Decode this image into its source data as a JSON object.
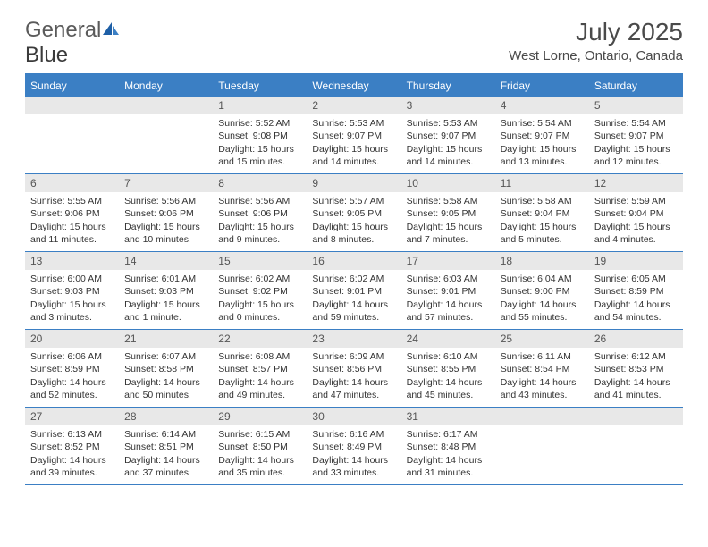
{
  "logo": {
    "text1": "General",
    "text2": "Blue"
  },
  "title": "July 2025",
  "location": "West Lorne, Ontario, Canada",
  "colors": {
    "header_bg": "#3b7fc4",
    "header_text": "#ffffff",
    "daynum_bg": "#e8e8e8",
    "border": "#3b7fc4",
    "body_text": "#333333"
  },
  "weekdays": [
    "Sunday",
    "Monday",
    "Tuesday",
    "Wednesday",
    "Thursday",
    "Friday",
    "Saturday"
  ],
  "weeks": [
    [
      {
        "n": "",
        "lines": []
      },
      {
        "n": "",
        "lines": []
      },
      {
        "n": "1",
        "lines": [
          "Sunrise: 5:52 AM",
          "Sunset: 9:08 PM",
          "Daylight: 15 hours",
          "and 15 minutes."
        ]
      },
      {
        "n": "2",
        "lines": [
          "Sunrise: 5:53 AM",
          "Sunset: 9:07 PM",
          "Daylight: 15 hours",
          "and 14 minutes."
        ]
      },
      {
        "n": "3",
        "lines": [
          "Sunrise: 5:53 AM",
          "Sunset: 9:07 PM",
          "Daylight: 15 hours",
          "and 14 minutes."
        ]
      },
      {
        "n": "4",
        "lines": [
          "Sunrise: 5:54 AM",
          "Sunset: 9:07 PM",
          "Daylight: 15 hours",
          "and 13 minutes."
        ]
      },
      {
        "n": "5",
        "lines": [
          "Sunrise: 5:54 AM",
          "Sunset: 9:07 PM",
          "Daylight: 15 hours",
          "and 12 minutes."
        ]
      }
    ],
    [
      {
        "n": "6",
        "lines": [
          "Sunrise: 5:55 AM",
          "Sunset: 9:06 PM",
          "Daylight: 15 hours",
          "and 11 minutes."
        ]
      },
      {
        "n": "7",
        "lines": [
          "Sunrise: 5:56 AM",
          "Sunset: 9:06 PM",
          "Daylight: 15 hours",
          "and 10 minutes."
        ]
      },
      {
        "n": "8",
        "lines": [
          "Sunrise: 5:56 AM",
          "Sunset: 9:06 PM",
          "Daylight: 15 hours",
          "and 9 minutes."
        ]
      },
      {
        "n": "9",
        "lines": [
          "Sunrise: 5:57 AM",
          "Sunset: 9:05 PM",
          "Daylight: 15 hours",
          "and 8 minutes."
        ]
      },
      {
        "n": "10",
        "lines": [
          "Sunrise: 5:58 AM",
          "Sunset: 9:05 PM",
          "Daylight: 15 hours",
          "and 7 minutes."
        ]
      },
      {
        "n": "11",
        "lines": [
          "Sunrise: 5:58 AM",
          "Sunset: 9:04 PM",
          "Daylight: 15 hours",
          "and 5 minutes."
        ]
      },
      {
        "n": "12",
        "lines": [
          "Sunrise: 5:59 AM",
          "Sunset: 9:04 PM",
          "Daylight: 15 hours",
          "and 4 minutes."
        ]
      }
    ],
    [
      {
        "n": "13",
        "lines": [
          "Sunrise: 6:00 AM",
          "Sunset: 9:03 PM",
          "Daylight: 15 hours",
          "and 3 minutes."
        ]
      },
      {
        "n": "14",
        "lines": [
          "Sunrise: 6:01 AM",
          "Sunset: 9:03 PM",
          "Daylight: 15 hours",
          "and 1 minute."
        ]
      },
      {
        "n": "15",
        "lines": [
          "Sunrise: 6:02 AM",
          "Sunset: 9:02 PM",
          "Daylight: 15 hours",
          "and 0 minutes."
        ]
      },
      {
        "n": "16",
        "lines": [
          "Sunrise: 6:02 AM",
          "Sunset: 9:01 PM",
          "Daylight: 14 hours",
          "and 59 minutes."
        ]
      },
      {
        "n": "17",
        "lines": [
          "Sunrise: 6:03 AM",
          "Sunset: 9:01 PM",
          "Daylight: 14 hours",
          "and 57 minutes."
        ]
      },
      {
        "n": "18",
        "lines": [
          "Sunrise: 6:04 AM",
          "Sunset: 9:00 PM",
          "Daylight: 14 hours",
          "and 55 minutes."
        ]
      },
      {
        "n": "19",
        "lines": [
          "Sunrise: 6:05 AM",
          "Sunset: 8:59 PM",
          "Daylight: 14 hours",
          "and 54 minutes."
        ]
      }
    ],
    [
      {
        "n": "20",
        "lines": [
          "Sunrise: 6:06 AM",
          "Sunset: 8:59 PM",
          "Daylight: 14 hours",
          "and 52 minutes."
        ]
      },
      {
        "n": "21",
        "lines": [
          "Sunrise: 6:07 AM",
          "Sunset: 8:58 PM",
          "Daylight: 14 hours",
          "and 50 minutes."
        ]
      },
      {
        "n": "22",
        "lines": [
          "Sunrise: 6:08 AM",
          "Sunset: 8:57 PM",
          "Daylight: 14 hours",
          "and 49 minutes."
        ]
      },
      {
        "n": "23",
        "lines": [
          "Sunrise: 6:09 AM",
          "Sunset: 8:56 PM",
          "Daylight: 14 hours",
          "and 47 minutes."
        ]
      },
      {
        "n": "24",
        "lines": [
          "Sunrise: 6:10 AM",
          "Sunset: 8:55 PM",
          "Daylight: 14 hours",
          "and 45 minutes."
        ]
      },
      {
        "n": "25",
        "lines": [
          "Sunrise: 6:11 AM",
          "Sunset: 8:54 PM",
          "Daylight: 14 hours",
          "and 43 minutes."
        ]
      },
      {
        "n": "26",
        "lines": [
          "Sunrise: 6:12 AM",
          "Sunset: 8:53 PM",
          "Daylight: 14 hours",
          "and 41 minutes."
        ]
      }
    ],
    [
      {
        "n": "27",
        "lines": [
          "Sunrise: 6:13 AM",
          "Sunset: 8:52 PM",
          "Daylight: 14 hours",
          "and 39 minutes."
        ]
      },
      {
        "n": "28",
        "lines": [
          "Sunrise: 6:14 AM",
          "Sunset: 8:51 PM",
          "Daylight: 14 hours",
          "and 37 minutes."
        ]
      },
      {
        "n": "29",
        "lines": [
          "Sunrise: 6:15 AM",
          "Sunset: 8:50 PM",
          "Daylight: 14 hours",
          "and 35 minutes."
        ]
      },
      {
        "n": "30",
        "lines": [
          "Sunrise: 6:16 AM",
          "Sunset: 8:49 PM",
          "Daylight: 14 hours",
          "and 33 minutes."
        ]
      },
      {
        "n": "31",
        "lines": [
          "Sunrise: 6:17 AM",
          "Sunset: 8:48 PM",
          "Daylight: 14 hours",
          "and 31 minutes."
        ]
      },
      {
        "n": "",
        "lines": []
      },
      {
        "n": "",
        "lines": []
      }
    ]
  ]
}
